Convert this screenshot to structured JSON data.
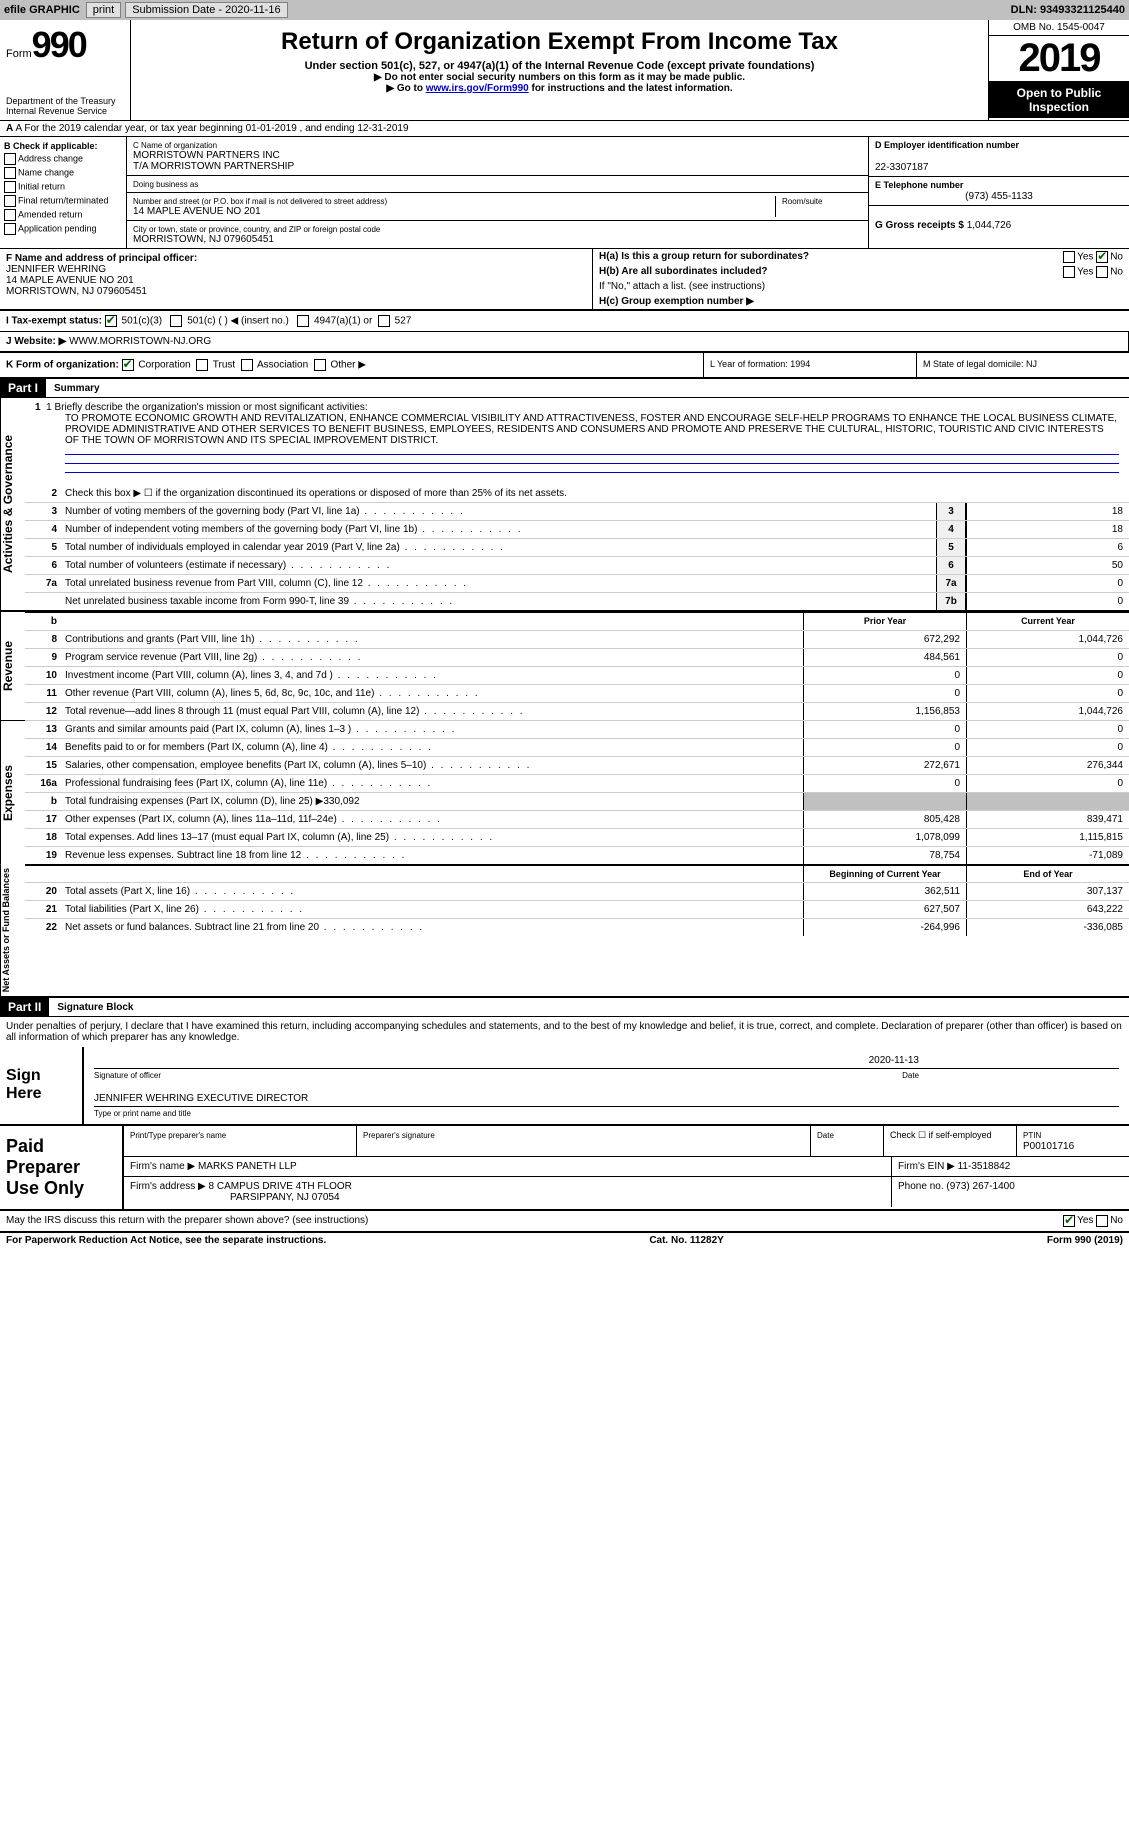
{
  "colors": {
    "topbar_bg": "#c0c0c0",
    "button_bg": "#e0e0e0",
    "link": "#0000cc",
    "black": "#000000",
    "check_green": "#006600",
    "rule_blue": "#0000cc"
  },
  "topbar": {
    "efile": "efile GRAPHIC",
    "print": "print",
    "submission": "Submission Date - 2020-11-16",
    "dln": "DLN: 93493321125440"
  },
  "header": {
    "form_word": "Form",
    "form_num": "990",
    "dept": "Department of the Treasury\nInternal Revenue Service",
    "title": "Return of Organization Exempt From Income Tax",
    "sub": "Under section 501(c), 527, or 4947(a)(1) of the Internal Revenue Code (except private foundations)",
    "note1": "▶ Do not enter social security numbers on this form as it may be made public.",
    "note2_pre": "▶ Go to ",
    "note2_link": "www.irs.gov/Form990",
    "note2_post": " for instructions and the latest information.",
    "omb": "OMB No. 1545-0047",
    "year": "2019",
    "open": "Open to Public Inspection"
  },
  "sectionA": "A For the 2019 calendar year, or tax year beginning 01-01-2019   , and ending 12-31-2019",
  "colB": {
    "title": "B Check if applicable:",
    "items": [
      "Address change",
      "Name change",
      "Initial return",
      "Final return/terminated",
      "Amended return",
      "Application pending"
    ]
  },
  "colC": {
    "name_label": "C Name of organization",
    "name1": "MORRISTOWN PARTNERS INC",
    "name2": "T/A MORRISTOWN PARTNERSHIP",
    "dba_label": "Doing business as",
    "street_label": "Number and street (or P.O. box if mail is not delivered to street address)",
    "room_label": "Room/suite",
    "street": "14 MAPLE AVENUE NO 201",
    "city_label": "City or town, state or province, country, and ZIP or foreign postal code",
    "city": "MORRISTOWN, NJ  079605451"
  },
  "colD": {
    "ein_label": "D Employer identification number",
    "ein": "22-3307187",
    "phone_label": "E Telephone number",
    "phone": "(973) 455-1133",
    "gross_label": "G Gross receipts $",
    "gross": "1,044,726"
  },
  "rowF": {
    "label": "F Name and address of principal officer:",
    "name": "JENNIFER WEHRING",
    "addr1": "14 MAPLE AVENUE NO 201",
    "addr2": "MORRISTOWN, NJ  079605451"
  },
  "rowH": {
    "a": "H(a)  Is this a group return for subordinates?",
    "b": "H(b)  Are all subordinates included?",
    "note": "If \"No,\" attach a list. (see instructions)",
    "c": "H(c)  Group exemption number ▶",
    "yes": "Yes",
    "no": "No"
  },
  "rowI": {
    "label": "I  Tax-exempt status:",
    "opt1": "501(c)(3)",
    "opt2": "501(c) (   ) ◀ (insert no.)",
    "opt3": "4947(a)(1) or",
    "opt4": "527"
  },
  "rowJ": {
    "label": "J  Website: ▶",
    "value": "WWW.MORRISTOWN-NJ.ORG"
  },
  "rowK": {
    "label": "K Form of organization:",
    "corp": "Corporation",
    "trust": "Trust",
    "assoc": "Association",
    "other": "Other ▶",
    "l": "L Year of formation: 1994",
    "m": "M State of legal domicile: NJ"
  },
  "part1": {
    "header": "Part I",
    "title": "Summary",
    "tab1": "Activities & Governance",
    "line1_label": "1  Briefly describe the organization's mission or most significant activities:",
    "mission": "TO PROMOTE ECONOMIC GROWTH AND REVITALIZATION, ENHANCE COMMERCIAL VISIBILITY AND ATTRACTIVENESS, FOSTER AND ENCOURAGE SELF-HELP PROGRAMS TO ENHANCE THE LOCAL BUSINESS CLIMATE, PROVIDE ADMINISTRATIVE AND OTHER SERVICES TO BENEFIT BUSINESS, EMPLOYEES, RESIDENTS AND CONSUMERS AND PROMOTE AND PRESERVE THE CULTURAL, HISTORIC, TOURISTIC AND CIVIC INTERESTS OF THE TOWN OF MORRISTOWN AND ITS SPECIAL IMPROVEMENT DISTRICT.",
    "line2": "Check this box ▶ ☐ if the organization discontinued its operations or disposed of more than 25% of its net assets.",
    "lines": [
      {
        "n": "3",
        "d": "Number of voting members of the governing body (Part VI, line 1a)",
        "box": "3",
        "v": "18"
      },
      {
        "n": "4",
        "d": "Number of independent voting members of the governing body (Part VI, line 1b)",
        "box": "4",
        "v": "18"
      },
      {
        "n": "5",
        "d": "Total number of individuals employed in calendar year 2019 (Part V, line 2a)",
        "box": "5",
        "v": "6"
      },
      {
        "n": "6",
        "d": "Total number of volunteers (estimate if necessary)",
        "box": "6",
        "v": "50"
      },
      {
        "n": "7a",
        "d": "Total unrelated business revenue from Part VIII, column (C), line 12",
        "box": "7a",
        "v": "0"
      },
      {
        "n": "",
        "d": "Net unrelated business taxable income from Form 990-T, line 39",
        "box": "7b",
        "v": "0"
      }
    ],
    "tab2": "Revenue",
    "col_prior": "Prior Year",
    "col_current": "Current Year",
    "revenue": [
      {
        "n": "8",
        "d": "Contributions and grants (Part VIII, line 1h)",
        "p": "672,292",
        "c": "1,044,726"
      },
      {
        "n": "9",
        "d": "Program service revenue (Part VIII, line 2g)",
        "p": "484,561",
        "c": "0"
      },
      {
        "n": "10",
        "d": "Investment income (Part VIII, column (A), lines 3, 4, and 7d )",
        "p": "0",
        "c": "0"
      },
      {
        "n": "11",
        "d": "Other revenue (Part VIII, column (A), lines 5, 6d, 8c, 9c, 10c, and 11e)",
        "p": "0",
        "c": "0"
      },
      {
        "n": "12",
        "d": "Total revenue—add lines 8 through 11 (must equal Part VIII, column (A), line 12)",
        "p": "1,156,853",
        "c": "1,044,726"
      }
    ],
    "tab3": "Expenses",
    "expenses": [
      {
        "n": "13",
        "d": "Grants and similar amounts paid (Part IX, column (A), lines 1–3 )",
        "p": "0",
        "c": "0"
      },
      {
        "n": "14",
        "d": "Benefits paid to or for members (Part IX, column (A), line 4)",
        "p": "0",
        "c": "0"
      },
      {
        "n": "15",
        "d": "Salaries, other compensation, employee benefits (Part IX, column (A), lines 5–10)",
        "p": "272,671",
        "c": "276,344"
      },
      {
        "n": "16a",
        "d": "Professional fundraising fees (Part IX, column (A), line 11e)",
        "p": "0",
        "c": "0"
      },
      {
        "n": "b",
        "d": "Total fundraising expenses (Part IX, column (D), line 25) ▶330,092",
        "p": "",
        "c": ""
      },
      {
        "n": "17",
        "d": "Other expenses (Part IX, column (A), lines 11a–11d, 11f–24e)",
        "p": "805,428",
        "c": "839,471"
      },
      {
        "n": "18",
        "d": "Total expenses. Add lines 13–17 (must equal Part IX, column (A), line 25)",
        "p": "1,078,099",
        "c": "1,115,815"
      },
      {
        "n": "19",
        "d": "Revenue less expenses. Subtract line 18 from line 12",
        "p": "78,754",
        "c": "-71,089"
      }
    ],
    "tab4": "Net Assets or Fund Balances",
    "col_begin": "Beginning of Current Year",
    "col_end": "End of Year",
    "netassets": [
      {
        "n": "20",
        "d": "Total assets (Part X, line 16)",
        "p": "362,511",
        "c": "307,137"
      },
      {
        "n": "21",
        "d": "Total liabilities (Part X, line 26)",
        "p": "627,507",
        "c": "643,222"
      },
      {
        "n": "22",
        "d": "Net assets or fund balances. Subtract line 21 from line 20",
        "p": "-264,996",
        "c": "-336,085"
      }
    ]
  },
  "part2": {
    "header": "Part II",
    "title": "Signature Block",
    "declaration": "Under penalties of perjury, I declare that I have examined this return, including accompanying schedules and statements, and to the best of my knowledge and belief, it is true, correct, and complete. Declaration of preparer (other than officer) is based on all information of which preparer has any knowledge.",
    "sign_here": "Sign Here",
    "sig_date": "2020-11-13",
    "sig_label": "Signature of officer",
    "date_label": "Date",
    "name_title": "JENNIFER WEHRING  EXECUTIVE DIRECTOR",
    "name_label": "Type or print name and title",
    "paid": "Paid Preparer Use Only",
    "prep_name_label": "Print/Type preparer's name",
    "prep_sig_label": "Preparer's signature",
    "prep_date_label": "Date",
    "check_self": "Check ☐ if self-employed",
    "ptin_label": "PTIN",
    "ptin": "P00101716",
    "firm_name_label": "Firm's name    ▶",
    "firm_name": "MARKS PANETH LLP",
    "firm_ein_label": "Firm's EIN ▶",
    "firm_ein": "11-3518842",
    "firm_addr_label": "Firm's address ▶",
    "firm_addr1": "8 CAMPUS DRIVE 4TH FLOOR",
    "firm_addr2": "PARSIPPANY, NJ  07054",
    "phone_label": "Phone no.",
    "phone": "(973) 267-1400",
    "discuss": "May the IRS discuss this return with the preparer shown above? (see instructions)"
  },
  "footer": {
    "left": "For Paperwork Reduction Act Notice, see the separate instructions.",
    "mid": "Cat. No. 11282Y",
    "right_pre": "Form ",
    "right_bold": "990",
    "right_post": " (2019)"
  }
}
